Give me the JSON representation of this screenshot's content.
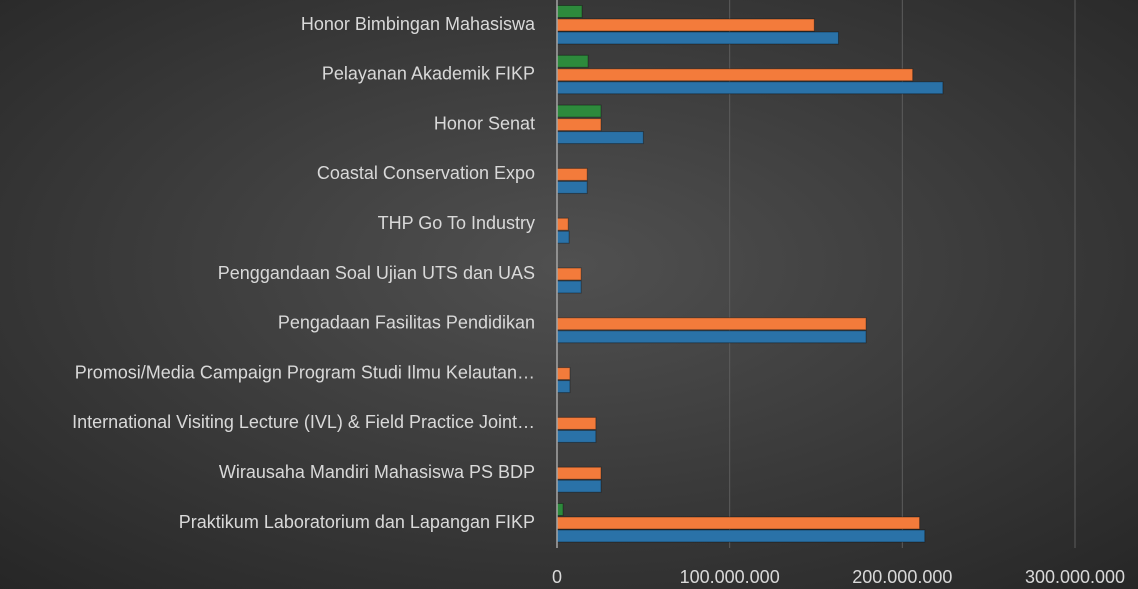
{
  "chart_data": {
    "type": "bar",
    "orientation": "horizontal",
    "categories": [
      "Honor Bimbingan Mahasiswa",
      "Pelayanan Akademik FIKP",
      "Honor Senat",
      "Coastal Conservation Expo",
      "THP Go To Industry",
      "Penggandaan Soal Ujian UTS dan UAS",
      "Pengadaan Fasilitas Pendidikan",
      "Promosi/Media Campaign Program Studi Ilmu Kelautan…",
      "International Visiting Lecture (IVL) & Field Practice Joint…",
      "Wirausaha Mandiri Mahasiswa PS BDP",
      "Praktikum Laboratorium dan Lapangan FIKP"
    ],
    "series": [
      {
        "color": "#2d8a3c",
        "values": [
          14500000,
          18000000,
          25500000,
          null,
          null,
          null,
          null,
          null,
          null,
          null,
          3500000
        ]
      },
      {
        "color": "#f37b3b",
        "values": [
          149000000,
          206000000,
          25500000,
          17500000,
          6500000,
          14000000,
          179000000,
          7500000,
          22500000,
          25500000,
          210000000
        ]
      },
      {
        "color": "#2a72a8",
        "values": [
          163000000,
          223500000,
          50000000,
          17500000,
          7000000,
          14000000,
          179000000,
          7500000,
          22500000,
          25500000,
          213000000
        ]
      }
    ],
    "xlim": [
      0,
      300000000
    ],
    "xticks": [
      0,
      {
        "value": 100000000,
        "label": "100.000.000"
      },
      {
        "value": 200000000,
        "label": "200.000.000"
      },
      {
        "value": 300000000,
        "label": "300.000.000"
      }
    ],
    "grid": true
  }
}
